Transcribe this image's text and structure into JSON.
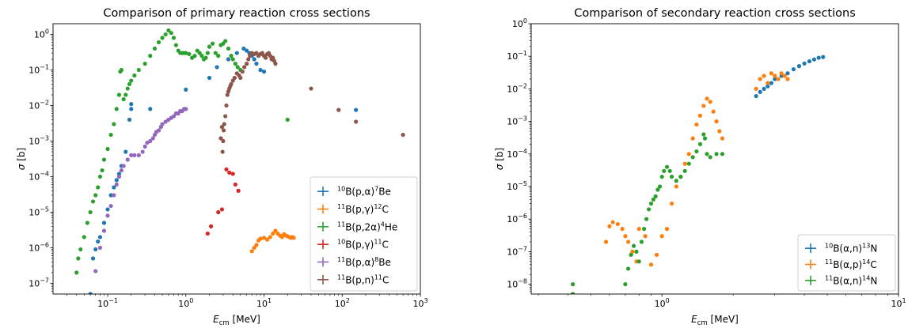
{
  "chart_data": [
    {
      "type": "scatter",
      "title": "Comparison of primary reaction cross sections",
      "xlabel_main": "E",
      "xlabel_sub": "cm",
      "xlabel_unit": " [MeV]",
      "ylabel_main": "σ",
      "ylabel_unit": " [b]",
      "x_scale": "log",
      "y_scale": "log",
      "xlim": [
        0.02,
        1000
      ],
      "ylim": [
        5e-08,
        2
      ],
      "x_ticks": [
        {
          "v": 0.1,
          "b": "10",
          "e": "−1"
        },
        {
          "v": 1,
          "b": "10",
          "e": "0"
        },
        {
          "v": 10,
          "b": "10",
          "e": "1"
        },
        {
          "v": 100,
          "b": "10",
          "e": "2"
        },
        {
          "v": 1000,
          "b": "10",
          "e": "3"
        }
      ],
      "y_ticks": [
        {
          "v": 1e-07,
          "b": "10",
          "e": "−7"
        },
        {
          "v": 1e-06,
          "b": "10",
          "e": "−6"
        },
        {
          "v": 1e-05,
          "b": "10",
          "e": "−5"
        },
        {
          "v": 0.0001,
          "b": "10",
          "e": "−4"
        },
        {
          "v": 0.001,
          "b": "10",
          "e": "−3"
        },
        {
          "v": 0.01,
          "b": "10",
          "e": "−2"
        },
        {
          "v": 0.1,
          "b": "10",
          "e": "−1"
        },
        {
          "v": 1,
          "b": "10",
          "e": "0"
        }
      ],
      "legend_position": "lower-right",
      "series": [
        {
          "name": "10B(p,α)7Be",
          "pre": "10",
          "mid": "B(p,α)",
          "sup": "7",
          "post": "Be",
          "color": "#1f77b4",
          "x": [
            0.06,
            0.065,
            0.07,
            0.075,
            0.08,
            0.09,
            0.1,
            0.11,
            0.12,
            0.13,
            0.14,
            0.15,
            0.17,
            0.19,
            0.2,
            0.2,
            0.35,
            1.0,
            2.0,
            2.5,
            3.5,
            4.5,
            5.5,
            6.0,
            6.5,
            7.0,
            7.5,
            8.0,
            9.0,
            10.0,
            150.0
          ],
          "y": [
            5e-08,
            5e-07,
            9e-07,
            1.5e-06,
            2e-06,
            5e-06,
            1.2e-05,
            3e-05,
            5e-05,
            8e-05,
            0.00012,
            0.0002,
            0.0005,
            0.004,
            0.008,
            0.011,
            0.008,
            0.028,
            0.06,
            0.12,
            0.2,
            0.3,
            0.4,
            0.35,
            0.3,
            0.25,
            0.2,
            0.15,
            0.1,
            0.09,
            0.0075
          ]
        },
        {
          "name": "11B(p,γ)12C",
          "pre": "11",
          "mid": "B(p,γ)",
          "sup": "12",
          "post": "C",
          "color": "#ff7f0e",
          "x": [
            7.0,
            7.5,
            8.0,
            8.5,
            9.0,
            10.0,
            11.0,
            12.0,
            13.0,
            14.0,
            15.0,
            16.0,
            17.0,
            18.0,
            19.0,
            20.0,
            21.0,
            22.0,
            23.0,
            24.0
          ],
          "y": [
            8e-07,
            1e-06,
            1.2e-06,
            1.6e-06,
            1.8e-06,
            1.9e-06,
            1.7e-06,
            2e-06,
            2.5e-06,
            3e-06,
            2.5e-06,
            2.2e-06,
            2e-06,
            2.4e-06,
            2.2e-06,
            2.1e-06,
            2e-06,
            1.9e-06,
            2e-06,
            1.9e-06
          ]
        },
        {
          "name": "11B(p,2α)4He",
          "pre": "11",
          "mid": "B(p,2α)",
          "sup": "4",
          "post": "He",
          "color": "#2ca02c",
          "x": [
            0.04,
            0.042,
            0.045,
            0.05,
            0.055,
            0.06,
            0.065,
            0.07,
            0.075,
            0.08,
            0.085,
            0.09,
            0.1,
            0.11,
            0.12,
            0.13,
            0.14,
            0.145,
            0.15,
            0.16,
            0.17,
            0.18,
            0.19,
            0.2,
            0.22,
            0.25,
            0.3,
            0.35,
            0.4,
            0.45,
            0.5,
            0.55,
            0.6,
            0.65,
            0.7,
            0.75,
            0.8,
            0.85,
            0.9,
            0.95,
            1.0,
            1.1,
            1.2,
            1.3,
            1.4,
            1.5,
            1.6,
            1.7,
            1.8,
            1.9,
            2.0,
            2.2,
            2.4,
            2.6,
            2.8,
            3.0,
            3.2,
            3.5,
            3.8,
            4.0,
            4.3,
            4.6,
            5.0,
            20.0
          ],
          "y": [
            2e-07,
            5e-07,
            9e-07,
            2e-06,
            5e-06,
            1e-05,
            2e-05,
            3e-05,
            5e-05,
            0.0001,
            0.00015,
            0.0003,
            0.0006,
            0.0015,
            0.003,
            0.008,
            0.02,
            0.09,
            0.1,
            0.015,
            0.02,
            0.03,
            0.04,
            0.05,
            0.07,
            0.1,
            0.15,
            0.25,
            0.4,
            0.6,
            0.8,
            1.0,
            1.3,
            1.1,
            0.8,
            0.5,
            0.35,
            0.3,
            0.3,
            0.3,
            0.3,
            0.28,
            0.22,
            0.25,
            0.35,
            0.3,
            0.25,
            0.2,
            0.22,
            0.3,
            0.45,
            0.55,
            0.3,
            0.25,
            0.5,
            0.55,
            0.65,
            0.4,
            0.25,
            0.2,
            0.15,
            0.12,
            0.1,
            0.004
          ]
        },
        {
          "name": "10B(p,γ)11C",
          "pre": "10",
          "mid": "B(p,γ)",
          "sup": "11",
          "post": "C",
          "color": "#d62728",
          "x": [
            1.9,
            2.1,
            2.6,
            2.9,
            3.3,
            3.6,
            4.0,
            4.3,
            4.7
          ],
          "y": [
            2.5e-06,
            4e-06,
            1e-05,
            1.2e-05,
            0.00016,
            0.00013,
            0.00012,
            6e-05,
            4e-05
          ]
        },
        {
          "name": "11B(p,α)8Be",
          "pre": "11",
          "mid": "B(p,α)",
          "sup": "8",
          "post": "Be",
          "color": "#9467bd",
          "x": [
            0.07,
            0.08,
            0.09,
            0.1,
            0.11,
            0.12,
            0.13,
            0.14,
            0.15,
            0.16,
            0.18,
            0.2,
            0.22,
            0.25,
            0.28,
            0.3,
            0.32,
            0.35,
            0.38,
            0.4,
            0.42,
            0.45,
            0.48,
            0.5,
            0.55,
            0.6,
            0.65,
            0.7,
            0.75,
            0.8,
            0.85,
            0.9,
            0.95,
            1.0
          ],
          "y": [
            2.2e-07,
            1e-06,
            3e-06,
            8e-06,
            1.5e-05,
            3e-05,
            6e-05,
            0.0001,
            0.00015,
            0.0002,
            0.0003,
            0.0004,
            0.0004,
            0.0004,
            0.0005,
            0.0007,
            0.0009,
            0.001,
            0.0012,
            0.0015,
            0.0018,
            0.002,
            0.0025,
            0.003,
            0.0035,
            0.004,
            0.0045,
            0.005,
            0.006,
            0.006,
            0.007,
            0.007,
            0.008,
            0.008
          ]
        },
        {
          "name": "11B(p,n)11C",
          "pre": "11",
          "mid": "B(p,n)",
          "sup": "11",
          "post": "C",
          "color": "#8c564b",
          "x": [
            2.8,
            2.9,
            2.95,
            3.0,
            3.05,
            3.1,
            3.2,
            3.3,
            3.4,
            3.5,
            3.6,
            3.7,
            3.8,
            4.0,
            4.2,
            4.5,
            4.8,
            5.0,
            5.3,
            5.6,
            6.0,
            6.3,
            6.6,
            7.0,
            7.5,
            8.0,
            8.5,
            9.0,
            9.5,
            10.0,
            10.5,
            11.0,
            11.5,
            12.0,
            12.5,
            13.0,
            13.5,
            14.0,
            40.0,
            90.0,
            150.0,
            600.0
          ],
          "y": [
            0.0012,
            0.0025,
            0.0005,
            0.001,
            0.002,
            0.003,
            0.005,
            0.01,
            0.02,
            0.025,
            0.03,
            0.035,
            0.04,
            0.05,
            0.06,
            0.08,
            0.07,
            0.06,
            0.09,
            0.12,
            0.15,
            0.2,
            0.25,
            0.3,
            0.28,
            0.3,
            0.25,
            0.28,
            0.3,
            0.25,
            0.22,
            0.28,
            0.3,
            0.25,
            0.2,
            0.22,
            0.18,
            0.15,
            0.03,
            0.0075,
            0.0035,
            0.0015
          ]
        }
      ]
    },
    {
      "type": "scatter",
      "title": "Comparison of secondary reaction cross sections",
      "xlabel_main": "E",
      "xlabel_sub": "cm",
      "xlabel_unit": " [MeV]",
      "ylabel_main": "σ",
      "ylabel_unit": " [b]",
      "x_scale": "log",
      "y_scale": "log",
      "xlim": [
        0.28,
        10
      ],
      "ylim": [
        5e-09,
        1
      ],
      "x_ticks": [
        {
          "v": 1,
          "b": "10",
          "e": "0"
        },
        {
          "v": 10,
          "b": "10",
          "e": "1"
        }
      ],
      "y_ticks": [
        {
          "v": 1e-08,
          "b": "10",
          "e": "−8"
        },
        {
          "v": 1e-07,
          "b": "10",
          "e": "−7"
        },
        {
          "v": 1e-06,
          "b": "10",
          "e": "−6"
        },
        {
          "v": 1e-05,
          "b": "10",
          "e": "−5"
        },
        {
          "v": 0.0001,
          "b": "10",
          "e": "−4"
        },
        {
          "v": 0.001,
          "b": "10",
          "e": "−3"
        },
        {
          "v": 0.01,
          "b": "10",
          "e": "−2"
        },
        {
          "v": 0.1,
          "b": "10",
          "e": "−1"
        },
        {
          "v": 1,
          "b": "10",
          "e": "0"
        }
      ],
      "legend_position": "lower-right",
      "series": [
        {
          "name": "10B(α,n)13N",
          "pre": "10",
          "mid": "B(α,n)",
          "sup": "13",
          "post": "N",
          "color": "#1f77b4",
          "x": [
            2.5,
            2.6,
            2.7,
            2.8,
            2.9,
            3.0,
            3.2,
            3.4,
            3.6,
            3.8,
            4.0,
            4.2,
            4.4,
            4.6,
            4.8
          ],
          "y": [
            0.006,
            0.008,
            0.01,
            0.012,
            0.015,
            0.02,
            0.025,
            0.03,
            0.04,
            0.05,
            0.06,
            0.07,
            0.08,
            0.09,
            0.095
          ]
        },
        {
          "name": "11B(α,p)14C",
          "pre": "11",
          "mid": "B(α,p)",
          "sup": "14",
          "post": "C",
          "color": "#ff7f0e",
          "x": [
            0.58,
            0.6,
            0.62,
            0.65,
            0.68,
            0.7,
            0.72,
            0.75,
            0.78,
            0.8,
            0.85,
            0.9,
            0.95,
            1.0,
            1.05,
            1.1,
            1.15,
            1.2,
            1.25,
            1.3,
            1.35,
            1.4,
            1.45,
            1.5,
            1.55,
            1.6,
            1.65,
            1.7,
            1.75,
            1.8,
            2.5,
            2.6,
            2.7,
            2.8,
            2.9,
            3.0,
            3.1,
            3.2,
            3.3,
            3.4
          ],
          "y": [
            2e-07,
            6e-07,
            8e-07,
            7e-07,
            5e-07,
            3e-07,
            2e-07,
            1e-07,
            5e-08,
            5e-07,
            3e-07,
            4e-08,
            8e-08,
            3e-07,
            5e-07,
            3e-06,
            1e-05,
            2e-05,
            5e-05,
            0.0001,
            0.0003,
            0.0008,
            0.0015,
            0.003,
            0.005,
            0.004,
            0.002,
            0.001,
            0.0005,
            0.0003,
            0.01,
            0.02,
            0.025,
            0.015,
            0.03,
            0.025,
            0.02,
            0.03,
            0.025,
            0.02
          ]
        },
        {
          "name": "11B(α,n)14N",
          "pre": "11",
          "mid": "B(α,n)",
          "sup": "14",
          "post": "N",
          "color": "#2ca02c",
          "x": [
            0.42,
            0.42,
            0.7,
            0.72,
            0.74,
            0.76,
            0.78,
            0.8,
            0.82,
            0.84,
            0.86,
            0.88,
            0.9,
            0.92,
            0.94,
            0.96,
            0.98,
            1.0,
            1.02,
            1.05,
            1.08,
            1.1,
            1.15,
            1.2,
            1.25,
            1.3,
            1.35,
            1.4,
            1.45,
            1.5,
            1.52,
            1.55,
            1.6,
            1.7,
            1.8
          ],
          "y": [
            5e-09,
            1e-08,
            1e-08,
            3e-08,
            8e-08,
            1.5e-07,
            1e-07,
            5e-08,
            2e-07,
            5e-07,
            1e-06,
            2e-06,
            3e-06,
            4e-06,
            5e-06,
            8e-06,
            1e-05,
            2e-05,
            3e-05,
            4e-05,
            3e-05,
            2e-05,
            1.5e-05,
            2e-05,
            3e-05,
            5e-05,
            8e-05,
            0.00012,
            0.0002,
            0.0004,
            0.0003,
            0.0001,
            8e-05,
            0.0001,
            0.0001
          ]
        }
      ]
    }
  ]
}
